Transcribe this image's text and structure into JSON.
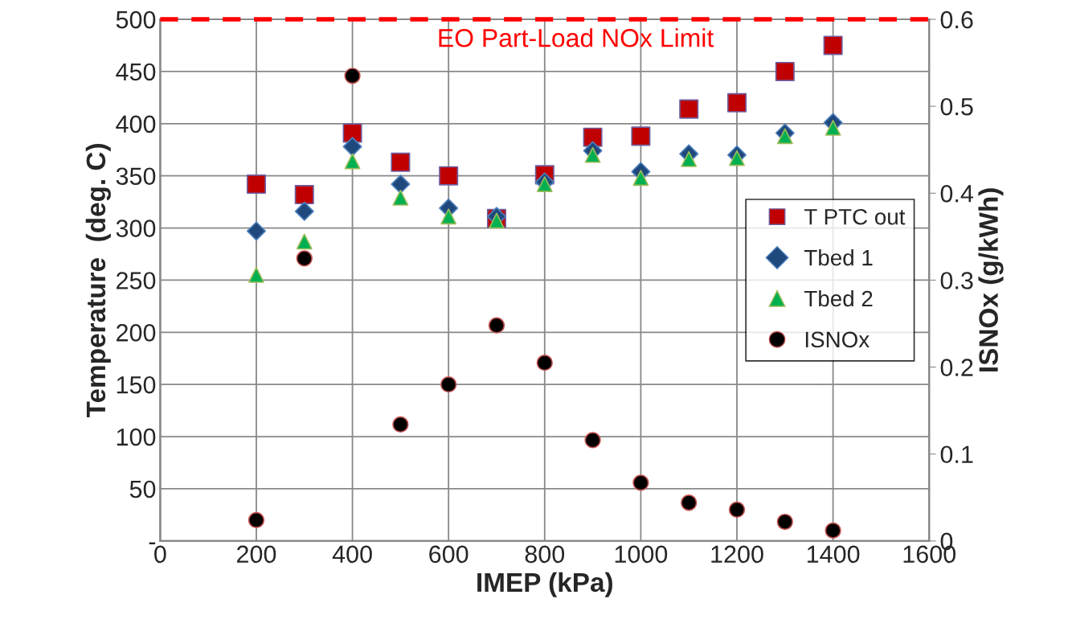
{
  "chart_data": {
    "type": "scatter",
    "xlabel": "IMEP (kPa)",
    "ylabel": "Temperature  (deg. C)",
    "y2label": "ISNOx (g/kWh)",
    "x": [
      200,
      300,
      400,
      500,
      600,
      700,
      800,
      900,
      1000,
      1100,
      1200,
      1300,
      1400
    ],
    "series": [
      {
        "name": "T PTC out",
        "color": "#c00000",
        "marker": "square",
        "values": [
          342,
          332,
          391,
          363,
          350,
          309,
          351,
          387,
          388,
          414,
          420,
          450,
          475
        ]
      },
      {
        "name": "Tbed 1",
        "color": "#1f497d",
        "marker": "diamond",
        "values": [
          297,
          316,
          378,
          342,
          319,
          311,
          344,
          374,
          354,
          371,
          370,
          391,
          401
        ]
      },
      {
        "name": "Tbed 2",
        "color": "#00b050",
        "marker": "triangle",
        "values": [
          255,
          287,
          364,
          329,
          311,
          307,
          342,
          370,
          348,
          366,
          367,
          388,
          396
        ]
      },
      {
        "name": "ISNOx",
        "color": "#000000",
        "marker": "circle",
        "axis": "y2",
        "values": [
          0.024,
          0.325,
          0.535,
          0.134,
          0.18,
          0.248,
          0.205,
          0.116,
          0.067,
          0.044,
          0.036,
          0.022,
          0.012
        ]
      }
    ],
    "xlim": [
      0,
      1600
    ],
    "xticks": [
      0,
      200,
      400,
      600,
      800,
      1000,
      1200,
      1400,
      1600
    ],
    "ylim": [
      0,
      500
    ],
    "yticks": [
      {
        "value": 0,
        "label": "-"
      },
      50,
      100,
      150,
      200,
      250,
      300,
      350,
      400,
      450,
      500
    ],
    "y2lim": [
      0,
      0.6
    ],
    "y2ticks": [
      0,
      0.1,
      0.2,
      0.3,
      0.4,
      0.5,
      0.6
    ],
    "ref_lines": [
      {
        "axis": "y2",
        "value": 0.6,
        "label": "EO Part-Load NOx Limit",
        "color": "#ff0000",
        "line_style": "dashed"
      }
    ],
    "grid": true,
    "legend": "right"
  }
}
